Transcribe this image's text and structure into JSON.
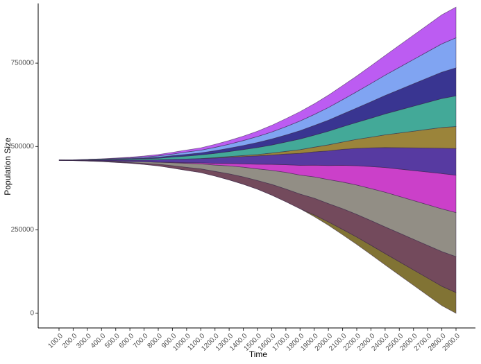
{
  "chart_data": {
    "type": "stream",
    "x_label": "Time",
    "y_label": "Population Size",
    "categories": [
      "100.0",
      "200.0",
      "300.0",
      "400.0",
      "500.0",
      "600.0",
      "700.0",
      "800.0",
      "900.0",
      "1000.0",
      "1100.0",
      "1200.0",
      "1300.0",
      "1400.0",
      "1500.0",
      "1600.0",
      "1700.0",
      "1800.0",
      "1900.0",
      "2000.0",
      "2100.0",
      "2200.0",
      "2300.0",
      "2400.0",
      "2500.0",
      "2600.0",
      "2700.0",
      "2800.0",
      "2900.0"
    ],
    "ylim": [
      -44000,
      929000
    ],
    "yticks": [
      0,
      250000,
      500000,
      750000
    ],
    "series": [
      {
        "color": "#6b5a10",
        "values": [
          0,
          0,
          0,
          0,
          0,
          0,
          0,
          0,
          0,
          0,
          0,
          0,
          0,
          0,
          0,
          0,
          0,
          0,
          5000,
          10000,
          16000,
          22000,
          28000,
          34000,
          40000,
          46000,
          52000,
          58000,
          62000
        ]
      },
      {
        "color": "#5a2a40",
        "values": [
          0,
          0,
          1000,
          1000,
          2000,
          2000,
          3000,
          5000,
          7000,
          9000,
          11000,
          14000,
          18000,
          22000,
          26000,
          32000,
          38000,
          44000,
          50000,
          55000,
          62000,
          68000,
          74000,
          80000,
          86000,
          92000,
          98000,
          104000,
          108000
        ]
      },
      {
        "color": "#7f7a70",
        "values": [
          0,
          0,
          1000,
          1000,
          2000,
          3000,
          5000,
          6000,
          9000,
          12000,
          15000,
          19000,
          24000,
          29000,
          35000,
          42000,
          50000,
          57000,
          64000,
          72000,
          80000,
          88000,
          96000,
          104000,
          110000,
          116000,
          122000,
          128000,
          132000
        ]
      },
      {
        "color": "#c21fc0",
        "values": [
          0,
          0,
          0,
          0,
          0,
          0,
          0,
          0,
          1000,
          2000,
          3000,
          5000,
          7000,
          10000,
          14000,
          18000,
          23000,
          29000,
          35000,
          42000,
          50000,
          58000,
          66000,
          74000,
          82000,
          90000,
          98000,
          106000,
          112000
        ]
      },
      {
        "color": "#3a1890",
        "values": [
          1000,
          1000,
          1000,
          2000,
          3000,
          4000,
          5000,
          7000,
          9000,
          11000,
          13000,
          16000,
          19000,
          22000,
          25000,
          28000,
          32000,
          36000,
          40000,
          44000,
          48000,
          52000,
          56000,
          60000,
          64000,
          68000,
          72000,
          76000,
          80000
        ]
      },
      {
        "color": "#8a6e18",
        "values": [
          0,
          0,
          0,
          0,
          0,
          0,
          0,
          0,
          0,
          0,
          0,
          1000,
          2000,
          3000,
          4000,
          6000,
          8000,
          11000,
          14000,
          18000,
          22000,
          27000,
          32000,
          38000,
          44000,
          50000,
          56000,
          62000,
          66000
        ]
      },
      {
        "color": "#229a86",
        "values": [
          0,
          0,
          1000,
          2000,
          2000,
          3000,
          4000,
          5000,
          7000,
          9000,
          11000,
          13000,
          15000,
          18000,
          21000,
          24000,
          28000,
          32000,
          36000,
          41000,
          46000,
          51000,
          57000,
          63000,
          69000,
          75000,
          81000,
          87000,
          92000
        ]
      },
      {
        "color": "#16127e",
        "values": [
          0,
          0,
          0,
          1000,
          1000,
          2000,
          2000,
          3000,
          4000,
          5000,
          6000,
          8000,
          10000,
          12000,
          15000,
          18000,
          21000,
          25000,
          29000,
          33000,
          38000,
          43000,
          49000,
          55000,
          61000,
          67000,
          73000,
          79000,
          84000
        ]
      },
      {
        "color": "#6a94f0",
        "values": [
          0,
          1000,
          1000,
          1000,
          2000,
          2000,
          3000,
          4000,
          5000,
          7000,
          8000,
          10000,
          12000,
          15000,
          18000,
          21000,
          25000,
          29000,
          33000,
          38000,
          43000,
          49000,
          55000,
          61000,
          67000,
          73000,
          79000,
          85000,
          90000
        ]
      },
      {
        "color": "#b040f0",
        "values": [
          0,
          0,
          0,
          0,
          1000,
          2000,
          3000,
          4000,
          5000,
          6000,
          7000,
          9000,
          11000,
          13000,
          16000,
          20000,
          24000,
          28000,
          32000,
          37000,
          42000,
          47000,
          53000,
          59000,
          66000,
          73000,
          80000,
          87000,
          92000
        ]
      }
    ]
  }
}
